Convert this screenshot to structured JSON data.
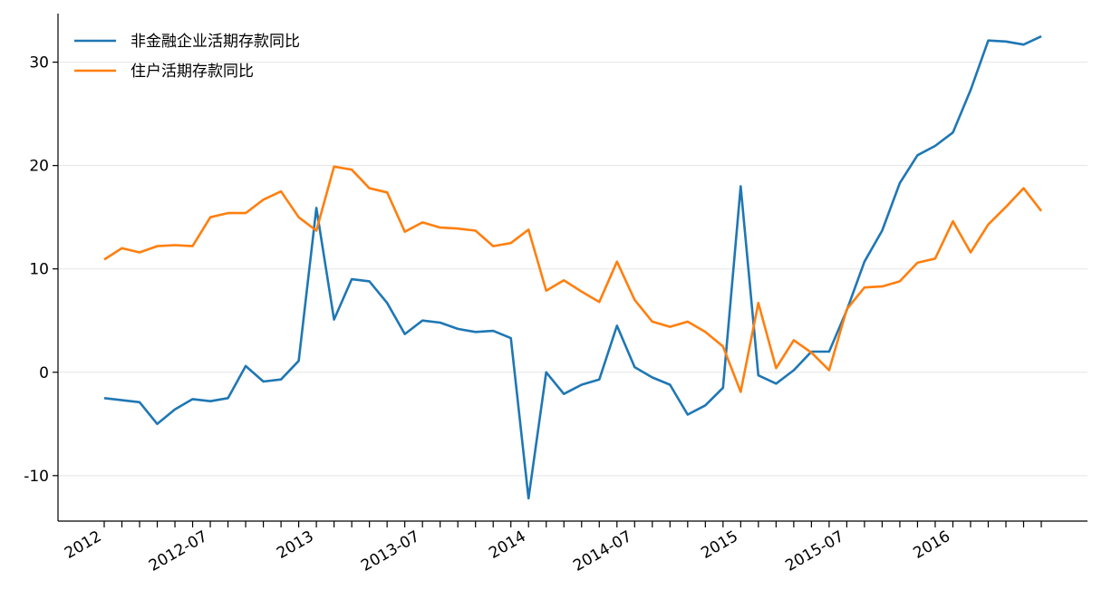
{
  "chart_data": {
    "type": "line",
    "categories": [
      "2012",
      null,
      null,
      null,
      null,
      null,
      "2012-07",
      null,
      null,
      null,
      null,
      null,
      "2013",
      null,
      null,
      null,
      null,
      null,
      "2013-07",
      null,
      null,
      null,
      null,
      null,
      "2014",
      null,
      null,
      null,
      null,
      null,
      "2014-07",
      null,
      null,
      null,
      null,
      null,
      "2015",
      null,
      null,
      null,
      null,
      null,
      "2015-07",
      null,
      null,
      null,
      null,
      null,
      "2016",
      null,
      null,
      null,
      null,
      null
    ],
    "series": [
      {
        "name": "非金融企业活期存款同比",
        "color": "#1f77b4",
        "values": [
          -2.5,
          -2.7,
          -2.9,
          -5.0,
          -3.6,
          -2.6,
          -2.8,
          -2.5,
          0.6,
          -0.9,
          -0.7,
          1.1,
          15.9,
          5.1,
          9.0,
          8.8,
          6.7,
          3.7,
          5.0,
          4.8,
          4.2,
          3.9,
          4.0,
          3.3,
          -12.2,
          0.0,
          -2.1,
          -1.2,
          -0.7,
          4.5,
          0.5,
          -0.5,
          -1.2,
          -4.1,
          -3.2,
          -1.5,
          18.0,
          -0.3,
          -1.1,
          0.2,
          2.0,
          2.0,
          6.0,
          10.7,
          13.7,
          18.3,
          21.0,
          21.9,
          23.2,
          27.3,
          32.1,
          32.0,
          31.7,
          32.5
        ]
      },
      {
        "name": "住户活期存款同比",
        "color": "#ff7f0e",
        "values": [
          10.9,
          12.0,
          11.6,
          12.2,
          12.3,
          12.2,
          15.0,
          15.4,
          15.4,
          16.7,
          17.5,
          15.0,
          13.7,
          19.9,
          19.6,
          17.8,
          17.4,
          13.6,
          14.5,
          14.0,
          13.9,
          13.7,
          12.2,
          12.5,
          13.8,
          7.9,
          8.9,
          7.8,
          6.8,
          10.7,
          7.0,
          4.9,
          4.4,
          4.9,
          3.9,
          2.5,
          -1.9,
          6.7,
          0.4,
          3.1,
          1.9,
          0.2,
          6.1,
          8.2,
          8.3,
          8.8,
          10.6,
          11.0,
          14.6,
          11.6,
          14.3,
          16.0,
          17.8,
          15.6
        ]
      }
    ],
    "ylim": [
      -14.4,
      34.7
    ],
    "yticks": [
      -10,
      0,
      10,
      20,
      30
    ],
    "grid": true,
    "legend": "upper left"
  }
}
